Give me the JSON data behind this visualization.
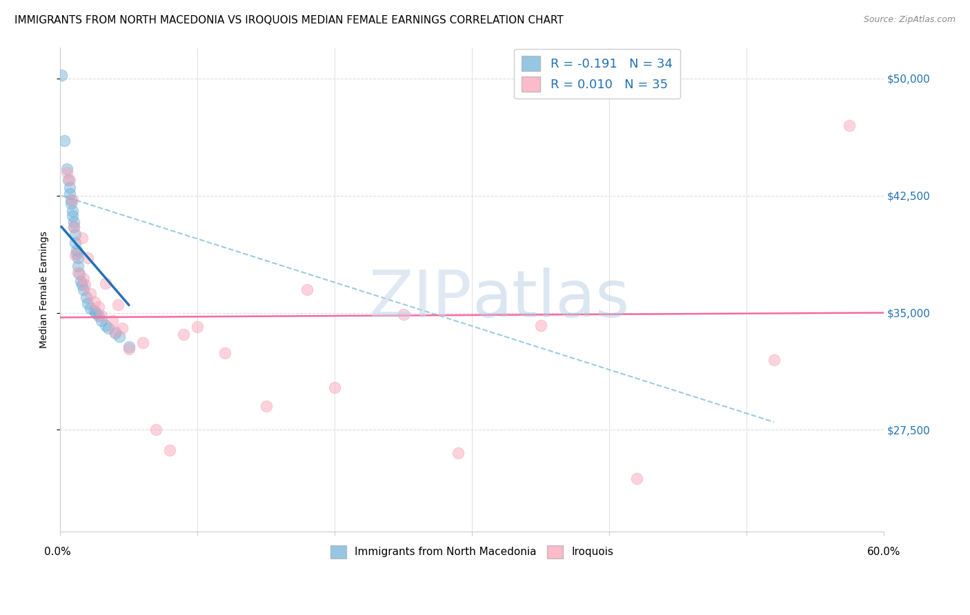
{
  "title": "IMMIGRANTS FROM NORTH MACEDONIA VS IROQUOIS MEDIAN FEMALE EARNINGS CORRELATION CHART",
  "source": "Source: ZipAtlas.com",
  "ylabel": "Median Female Earnings",
  "ytick_labels": [
    "$27,500",
    "$35,000",
    "$42,500",
    "$50,000"
  ],
  "ytick_values": [
    27500,
    35000,
    42500,
    50000
  ],
  "ymin": 21000,
  "ymax": 52000,
  "xmin": 0.0,
  "xmax": 0.6,
  "legend_label1": "R = -0.191   N = 34",
  "legend_label2": "R = 0.010   N = 35",
  "legend_color1": "#6baed6",
  "legend_color2": "#fa9fb5",
  "watermark": "ZIPatlas",
  "blue_scatter_x": [
    0.001,
    0.003,
    0.005,
    0.006,
    0.007,
    0.007,
    0.008,
    0.008,
    0.009,
    0.009,
    0.01,
    0.01,
    0.011,
    0.011,
    0.012,
    0.012,
    0.013,
    0.013,
    0.014,
    0.015,
    0.016,
    0.017,
    0.019,
    0.02,
    0.022,
    0.025,
    0.026,
    0.028,
    0.03,
    0.033,
    0.035,
    0.04,
    0.043,
    0.05
  ],
  "blue_scatter_y": [
    50200,
    46000,
    44200,
    43500,
    43000,
    42600,
    42200,
    42000,
    41500,
    41200,
    40800,
    40500,
    40000,
    39500,
    39000,
    38800,
    38500,
    38000,
    37500,
    37000,
    36800,
    36500,
    36000,
    35600,
    35300,
    35100,
    35000,
    34800,
    34500,
    34200,
    34000,
    33700,
    33500,
    32800
  ],
  "pink_scatter_x": [
    0.005,
    0.007,
    0.009,
    0.01,
    0.011,
    0.013,
    0.016,
    0.017,
    0.018,
    0.02,
    0.022,
    0.025,
    0.028,
    0.03,
    0.033,
    0.038,
    0.04,
    0.042,
    0.045,
    0.05,
    0.06,
    0.07,
    0.08,
    0.09,
    0.1,
    0.12,
    0.15,
    0.18,
    0.2,
    0.25,
    0.29,
    0.35,
    0.42,
    0.52,
    0.575
  ],
  "pink_scatter_y": [
    44000,
    43500,
    42200,
    40500,
    38700,
    37600,
    39800,
    37200,
    36800,
    38500,
    36200,
    35700,
    35400,
    34800,
    36900,
    34500,
    33800,
    35500,
    34000,
    32700,
    33100,
    27500,
    26200,
    33600,
    34100,
    32400,
    29000,
    36500,
    30200,
    34900,
    26000,
    34200,
    24400,
    32000,
    47000
  ],
  "blue_line_x": [
    0.001,
    0.05
  ],
  "blue_line_y": [
    40500,
    35500
  ],
  "pink_line_x": [
    0.0,
    0.6
  ],
  "pink_line_y": [
    34700,
    35000
  ],
  "dashed_line_x": [
    0.001,
    0.52
  ],
  "dashed_line_y": [
    42500,
    28000
  ],
  "grid_color": "#dddddd",
  "axis_color": "#cccccc",
  "blue_color": "#6baed6",
  "pink_color": "#fa9fb5",
  "blue_line_color": "#2171b5",
  "pink_line_color": "#f768a1",
  "dashed_color": "#9ecae1",
  "title_fontsize": 11,
  "source_fontsize": 9,
  "label_fontsize": 10,
  "tick_fontsize": 11
}
